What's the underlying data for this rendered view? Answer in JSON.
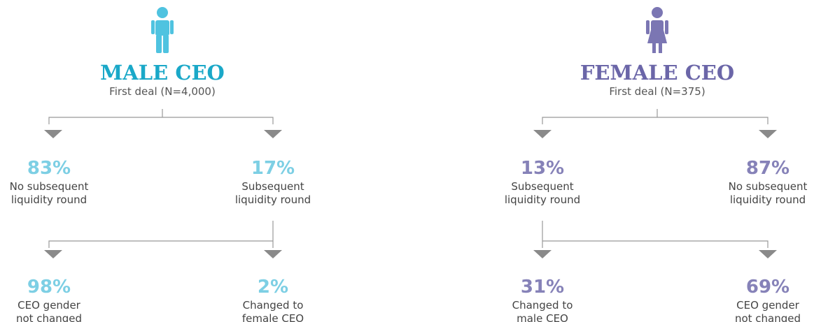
{
  "male": {
    "title": "MALE CEO",
    "subtitle": "First deal (N=4,000)",
    "nodes": [
      {
        "percent": "83%",
        "label": [
          "No subsequent",
          "liquidity round"
        ]
      },
      {
        "percent": "17%",
        "label": [
          "Subsequent",
          "liquidity round"
        ]
      },
      {
        "percent": "98%",
        "label": [
          "CEO gender",
          "not changed"
        ]
      },
      {
        "percent": "2%",
        "label": [
          "Changed to",
          "female CEO"
        ]
      }
    ]
  },
  "female": {
    "title": "FEMALE CEO",
    "subtitle": "First deal (N=375)",
    "nodes": [
      {
        "percent": "13%",
        "label": [
          "Subsequent",
          "liquidity round"
        ]
      },
      {
        "percent": "87%",
        "label": [
          "No subsequent",
          "liquidity round"
        ]
      },
      {
        "percent": "31%",
        "label": [
          "Changed to",
          "male CEO"
        ]
      },
      {
        "percent": "69%",
        "label": [
          "CEO gender",
          "not changed"
        ]
      }
    ]
  }
}
